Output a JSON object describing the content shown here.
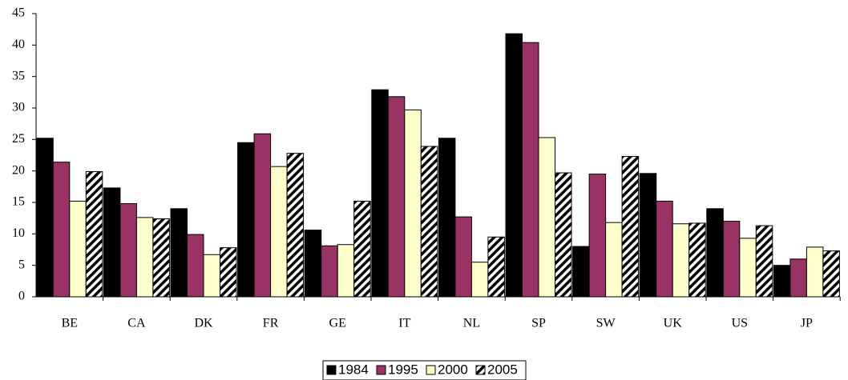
{
  "chart_data": {
    "type": "bar",
    "categories": [
      "BE",
      "CA",
      "DK",
      "FR",
      "GE",
      "IT",
      "NL",
      "SP",
      "SW",
      "UK",
      "US",
      "JP"
    ],
    "series": [
      {
        "name": "1984",
        "color": "#000000",
        "values": [
          25.2,
          17.3,
          14.0,
          24.5,
          10.6,
          32.9,
          25.2,
          41.8,
          8.0,
          19.6,
          14.0,
          5.0
        ]
      },
      {
        "name": "1995",
        "color": "#993366",
        "values": [
          21.4,
          14.8,
          9.9,
          25.9,
          8.1,
          31.8,
          12.7,
          40.4,
          19.5,
          15.2,
          12.0,
          6.0
        ]
      },
      {
        "name": "2000",
        "color": "#ffffcc",
        "values": [
          15.2,
          12.6,
          6.7,
          20.7,
          8.3,
          29.7,
          5.5,
          25.3,
          11.8,
          11.6,
          9.3,
          7.9
        ]
      },
      {
        "name": "2005",
        "color": "#000000",
        "hatch": true,
        "values": [
          19.9,
          12.4,
          7.8,
          22.8,
          15.2,
          23.9,
          9.5,
          19.7,
          22.3,
          11.7,
          11.3,
          7.3
        ]
      }
    ],
    "ylim": [
      0,
      45
    ],
    "yticks": [
      0,
      5,
      10,
      15,
      20,
      25,
      30,
      35,
      40,
      45
    ],
    "grid": false,
    "legend": "bottom"
  }
}
